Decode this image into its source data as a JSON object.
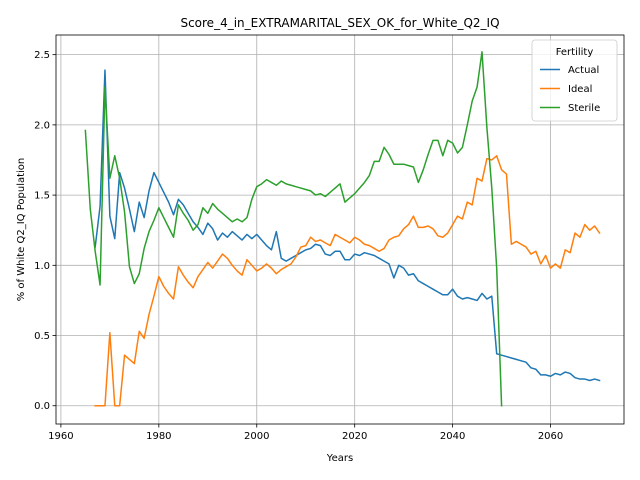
{
  "chart_data": {
    "type": "line",
    "title": "Score_4_in_EXTRAMARITAL_SEX_OK_for_White_Q2_IQ",
    "xlabel": "Years",
    "ylabel": "% of White Q2_IQ Population",
    "xlim": [
      1959,
      2075
    ],
    "ylim": [
      -0.13,
      2.64
    ],
    "xticks": [
      1960,
      1980,
      2000,
      2020,
      2040,
      2060
    ],
    "yticks": [
      0.0,
      0.5,
      1.0,
      1.5,
      2.0,
      2.5
    ],
    "ytick_labels": [
      "0.0",
      "0.5",
      "1.0",
      "1.5",
      "2.0",
      "2.5"
    ],
    "grid": true,
    "legend": {
      "title": "Fertility",
      "placement": "top-right"
    },
    "series": [
      {
        "name": "Actual",
        "color": "#1f77b4",
        "x": [
          1967,
          1968,
          1969,
          1970,
          1971,
          1972,
          1973,
          1974,
          1975,
          1976,
          1977,
          1978,
          1979,
          1980,
          1981,
          1982,
          1983,
          1984,
          1985,
          1986,
          1987,
          1988,
          1989,
          1990,
          1991,
          1992,
          1993,
          1994,
          1995,
          1996,
          1997,
          1998,
          1999,
          2000,
          2001,
          2002,
          2003,
          2004,
          2005,
          2006,
          2007,
          2008,
          2009,
          2010,
          2011,
          2012,
          2013,
          2014,
          2015,
          2016,
          2017,
          2018,
          2019,
          2020,
          2021,
          2022,
          2023,
          2024,
          2025,
          2026,
          2027,
          2028,
          2029,
          2030,
          2031,
          2032,
          2033,
          2034,
          2035,
          2036,
          2037,
          2038,
          2039,
          2040,
          2041,
          2042,
          2043,
          2044,
          2045,
          2046,
          2047,
          2048,
          2049,
          2050,
          2051,
          2052,
          2053,
          2054,
          2055,
          2056,
          2057,
          2058,
          2059,
          2060,
          2061,
          2062,
          2063,
          2064,
          2065,
          2066,
          2067,
          2068,
          2069,
          2070
        ],
        "y": [
          1.13,
          1.42,
          2.39,
          1.35,
          1.19,
          1.66,
          1.55,
          1.4,
          1.24,
          1.45,
          1.34,
          1.53,
          1.66,
          1.59,
          1.52,
          1.45,
          1.36,
          1.47,
          1.43,
          1.37,
          1.31,
          1.27,
          1.22,
          1.3,
          1.26,
          1.18,
          1.23,
          1.2,
          1.24,
          1.21,
          1.18,
          1.22,
          1.19,
          1.22,
          1.18,
          1.14,
          1.11,
          1.24,
          1.05,
          1.03,
          1.05,
          1.07,
          1.09,
          1.11,
          1.12,
          1.15,
          1.14,
          1.08,
          1.07,
          1.1,
          1.1,
          1.04,
          1.04,
          1.08,
          1.07,
          1.09,
          1.08,
          1.07,
          1.05,
          1.03,
          1.01,
          0.91,
          1.0,
          0.98,
          0.93,
          0.94,
          0.89,
          0.87,
          0.85,
          0.83,
          0.81,
          0.79,
          0.79,
          0.83,
          0.78,
          0.76,
          0.77,
          0.76,
          0.75,
          0.8,
          0.76,
          0.78,
          0.37,
          0.36,
          0.35,
          0.34,
          0.33,
          0.32,
          0.31,
          0.27,
          0.26,
          0.22,
          0.22,
          0.21,
          0.23,
          0.22,
          0.24,
          0.23,
          0.2,
          0.19,
          0.19,
          0.18,
          0.19,
          0.18
        ]
      },
      {
        "name": "Ideal",
        "color": "#ff7f0e",
        "x": [
          1967,
          1968,
          1969,
          1970,
          1971,
          1972,
          1973,
          1974,
          1975,
          1976,
          1977,
          1978,
          1979,
          1980,
          1981,
          1982,
          1983,
          1984,
          1985,
          1986,
          1987,
          1988,
          1989,
          1990,
          1991,
          1992,
          1993,
          1994,
          1995,
          1996,
          1997,
          1998,
          1999,
          2000,
          2001,
          2002,
          2003,
          2004,
          2005,
          2006,
          2007,
          2008,
          2009,
          2010,
          2011,
          2012,
          2013,
          2014,
          2015,
          2016,
          2017,
          2018,
          2019,
          2020,
          2021,
          2022,
          2023,
          2024,
          2025,
          2026,
          2027,
          2028,
          2029,
          2030,
          2031,
          2032,
          2033,
          2034,
          2035,
          2036,
          2037,
          2038,
          2039,
          2040,
          2041,
          2042,
          2043,
          2044,
          2045,
          2046,
          2047,
          2048,
          2049,
          2050,
          2051,
          2052,
          2053,
          2054,
          2055,
          2056,
          2057,
          2058,
          2059,
          2060,
          2061,
          2062,
          2063,
          2064,
          2065,
          2066,
          2067,
          2068,
          2069,
          2070
        ],
        "y": [
          0.0,
          0.0,
          0.0,
          0.52,
          0.0,
          0.0,
          0.36,
          0.33,
          0.3,
          0.53,
          0.48,
          0.65,
          0.78,
          0.92,
          0.85,
          0.8,
          0.76,
          0.99,
          0.93,
          0.88,
          0.84,
          0.92,
          0.97,
          1.02,
          0.98,
          1.03,
          1.08,
          1.05,
          1.0,
          0.96,
          0.93,
          1.04,
          1.0,
          0.96,
          0.98,
          1.01,
          0.98,
          0.94,
          0.97,
          0.99,
          1.01,
          1.06,
          1.13,
          1.14,
          1.2,
          1.17,
          1.18,
          1.16,
          1.14,
          1.22,
          1.2,
          1.18,
          1.16,
          1.2,
          1.18,
          1.15,
          1.14,
          1.12,
          1.1,
          1.12,
          1.18,
          1.2,
          1.21,
          1.26,
          1.29,
          1.35,
          1.27,
          1.27,
          1.28,
          1.26,
          1.21,
          1.2,
          1.23,
          1.29,
          1.35,
          1.33,
          1.45,
          1.43,
          1.62,
          1.6,
          1.76,
          1.75,
          1.78,
          1.68,
          1.65,
          1.15,
          1.17,
          1.15,
          1.13,
          1.08,
          1.1,
          1.01,
          1.07,
          0.98,
          1.01,
          0.98,
          1.11,
          1.09,
          1.23,
          1.2,
          1.29,
          1.25,
          1.28,
          1.23
        ]
      },
      {
        "name": "Sterile",
        "color": "#2ca02c",
        "x": [
          1965,
          1966,
          1967,
          1968,
          1969,
          1970,
          1971,
          1972,
          1973,
          1974,
          1975,
          1976,
          1977,
          1978,
          1979,
          1980,
          1981,
          1982,
          1983,
          1984,
          1985,
          1986,
          1987,
          1988,
          1989,
          1990,
          1991,
          1992,
          1993,
          1994,
          1995,
          1996,
          1997,
          1998,
          1999,
          2000,
          2001,
          2002,
          2003,
          2004,
          2005,
          2006,
          2007,
          2008,
          2009,
          2010,
          2011,
          2012,
          2013,
          2014,
          2015,
          2016,
          2017,
          2018,
          2019,
          2020,
          2021,
          2022,
          2023,
          2024,
          2025,
          2026,
          2027,
          2028,
          2029,
          2030,
          2031,
          2032,
          2033,
          2034,
          2035,
          2036,
          2037,
          2038,
          2039,
          2040,
          2041,
          2042,
          2043,
          2044,
          2045,
          2046,
          2047,
          2048,
          2049,
          2050
        ],
        "y": [
          1.96,
          1.4,
          1.1,
          0.86,
          2.27,
          1.62,
          1.78,
          1.62,
          1.38,
          0.99,
          0.87,
          0.94,
          1.12,
          1.24,
          1.32,
          1.41,
          1.34,
          1.27,
          1.2,
          1.43,
          1.37,
          1.32,
          1.25,
          1.29,
          1.41,
          1.37,
          1.44,
          1.4,
          1.37,
          1.34,
          1.31,
          1.33,
          1.31,
          1.34,
          1.47,
          1.56,
          1.58,
          1.61,
          1.59,
          1.57,
          1.6,
          1.58,
          1.57,
          1.56,
          1.55,
          1.54,
          1.53,
          1.5,
          1.51,
          1.49,
          1.52,
          1.55,
          1.58,
          1.45,
          1.48,
          1.51,
          1.55,
          1.59,
          1.64,
          1.74,
          1.74,
          1.84,
          1.79,
          1.72,
          1.72,
          1.72,
          1.71,
          1.7,
          1.59,
          1.68,
          1.79,
          1.89,
          1.89,
          1.78,
          1.89,
          1.87,
          1.8,
          1.84,
          2.0,
          2.17,
          2.27,
          2.52,
          1.98,
          1.55,
          0.98,
          0.0
        ]
      }
    ]
  }
}
